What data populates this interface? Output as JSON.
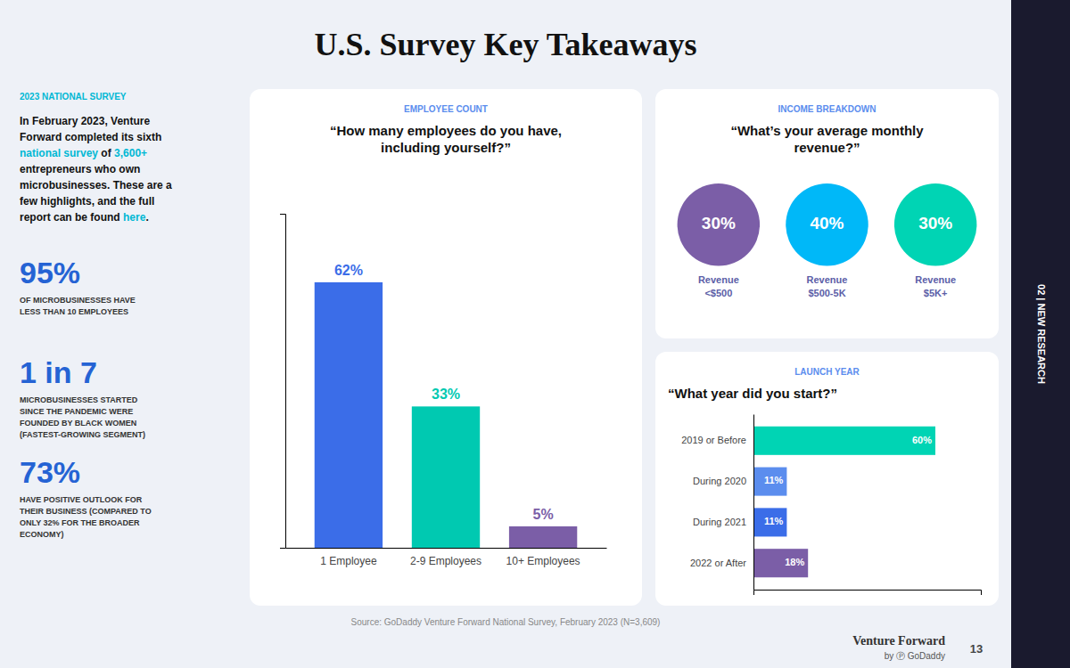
{
  "title": "U.S. Survey Key Takeaways",
  "annotations": [
    {
      "text": "2023 NATIONAL SURVEY",
      "color": "#00b8d4"
    },
    {
      "text": "In February 2023, Venture\nForward completed its sixth"
    },
    {
      "text": "national survey",
      "color": "#00b8d4"
    },
    {
      "text": " of "
    },
    {
      "text": "3,600+",
      "color": "#00b8d4"
    },
    {
      "text": "entrepreneurs who own\nmicrobusinesses. These are a\nfew highlights, and the full\nreport can be found "
    },
    {
      "text": "here",
      "color": "#00b8d4"
    },
    {
      "text": "."
    },
    {
      "text": "95%",
      "color": "#2563d4"
    },
    {
      "text": "OF MICROBUSINESSES HAVE\nLESS THAN 10 EMPLOYEES"
    },
    {
      "text": "1 in 7",
      "color": "#2563d4"
    },
    {
      "text": "MICROBUSINESSES STARTED\nSINCE THE PANDEMIC WERE\nFOUNDED BY BLACK WOMEN\n(FASTEST-GROWING SEGMENT)"
    },
    {
      "text": "73%",
      "color": "#2563d4"
    },
    {
      "text": "HAVE POSITIVE OUTLOOK FOR\nTHEIR BUSINESS (COMPARED TO\nONLY 32% FOR THE BROADER\nECONOMY)"
    },
    {
      "text": "Source: GoDaddy Venture Forward National Survey, February 2023 (N=3,609)"
    },
    {
      "text": "Venture Forward"
    },
    {
      "text": "by Ⓟ GoDaddy"
    },
    {
      "text": "13"
    },
    {
      "text": "02 | NEW RESEARCH"
    }
  ],
  "chart_data": [
    {
      "type": "bar",
      "title": "EMPLOYEE COUNT",
      "subtitle": "“How many employees do you have,\nincluding yourself?”",
      "categories": [
        "1 Employee",
        "2-9 Employees",
        "10+ Employees"
      ],
      "values": [
        62,
        33,
        5
      ],
      "value_labels": [
        "62%",
        "33%",
        "5%"
      ],
      "colors": [
        "#3b6de8",
        "#00c9b1",
        "#7b5ea7"
      ],
      "ylim": [
        0,
        78
      ],
      "data_labels": true,
      "tick_labels": "x",
      "grid": false
    },
    {
      "type": "bubble",
      "title": "INCOME BREAKDOWN",
      "subtitle": "“What’s your average monthly\nrevenue?”",
      "categories": [
        "Revenue\n<$500",
        "Revenue\n$500-5K",
        "Revenue\n$5K+"
      ],
      "values": [
        30,
        40,
        30
      ],
      "value_labels": [
        "30%",
        "40%",
        "30%"
      ],
      "colors": [
        "#7b5ea7",
        "#00b8f8",
        "#00d4b4"
      ],
      "data_labels": true,
      "tick_labels": "x",
      "grid": false
    },
    {
      "type": "bar",
      "orientation": "horizontal",
      "title": "LAUNCH YEAR",
      "subtitle": "“What year did you start?”",
      "categories": [
        "2019 or Before",
        "During 2020",
        "During 2021",
        "2022 or After"
      ],
      "values": [
        60,
        11,
        11,
        18
      ],
      "value_labels": [
        "60%",
        "11%",
        "11%",
        "18%"
      ],
      "colors": [
        "#00d4b4",
        "#5b8dee",
        "#3b6de8",
        "#7b5ea7"
      ],
      "xlim": [
        0,
        75
      ],
      "data_labels": true,
      "tick_labels": "y",
      "grid": false
    }
  ]
}
